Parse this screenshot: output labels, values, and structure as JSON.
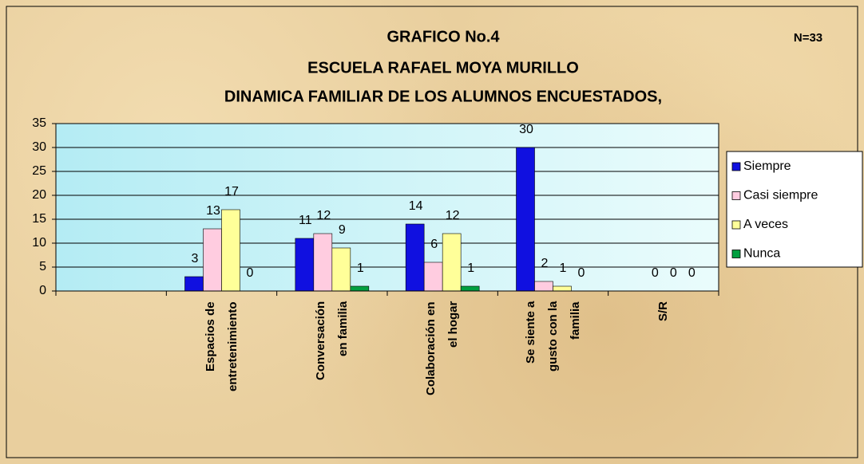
{
  "chart_data": {
    "type": "bar",
    "title": [
      "GRAFICO No.4",
      "ESCUELA RAFAEL MOYA MURILLO",
      "DINAMICA FAMILIAR DE LOS ALUMNOS ENCUESTADOS,"
    ],
    "annotation": "N=33",
    "categories": [
      null,
      "Espacios de\nentretenimiento",
      "Conversación\nen familia",
      "Colaboración en\nel hogar",
      "Se siente a\ngusto con la\nfamilia",
      "S/R"
    ],
    "series": [
      {
        "name": "Siempre",
        "color": "#1010e0",
        "values": [
          null,
          3,
          11,
          14,
          30,
          null
        ]
      },
      {
        "name": "Casi siempre",
        "color": "#ffcce0",
        "values": [
          null,
          13,
          12,
          6,
          2,
          0
        ]
      },
      {
        "name": "A veces",
        "color": "#ffff99",
        "values": [
          null,
          17,
          9,
          12,
          1,
          0
        ]
      },
      {
        "name": "Nunca",
        "color": "#00a040",
        "values": [
          null,
          0,
          1,
          1,
          0,
          0
        ]
      }
    ],
    "ylim": [
      0,
      35
    ],
    "yticks": [
      0,
      5,
      10,
      15,
      20,
      25,
      30,
      35
    ],
    "grid": true,
    "legend": "right"
  }
}
